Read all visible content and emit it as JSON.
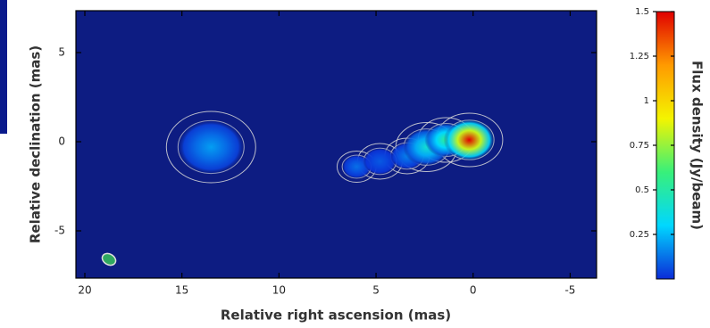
{
  "chart_data": {
    "type": "image",
    "x_label": "Relative right ascension (mas)",
    "y_label": "Relative declination (mas)",
    "colorbar_label": "Flux density (Jy/beam)",
    "xlim": [
      20.46,
      -6.36
    ],
    "ylim": [
      -7.65,
      7.35
    ],
    "xticks": [
      20,
      15,
      10,
      5,
      0,
      -5
    ],
    "yticks": [
      5,
      0,
      -5
    ],
    "clim": [
      0,
      1.5
    ],
    "cticks": [
      1.5,
      1.25,
      1,
      0.75,
      0.5,
      0.25
    ],
    "background": "#0d1c82",
    "contour_color": "#d8d8d8",
    "colorscale": [
      "#0b2bd8",
      "#00d7ff",
      "#38f07a",
      "#f4f400",
      "#ff9a00",
      "#e00000"
    ],
    "components": [
      {
        "x": 13.5,
        "y": -0.3,
        "flux": 0.2,
        "size": 1.6
      },
      {
        "x": 6.0,
        "y": -1.4,
        "flux": 0.12,
        "size": 0.7
      },
      {
        "x": 4.8,
        "y": -1.1,
        "flux": 0.08,
        "size": 0.8
      },
      {
        "x": 3.4,
        "y": -0.8,
        "flux": 0.15,
        "size": 0.8
      },
      {
        "x": 2.4,
        "y": -0.3,
        "flux": 0.4,
        "size": 1.1
      },
      {
        "x": 1.4,
        "y": 0.1,
        "flux": 0.55,
        "size": 1.0
      },
      {
        "x": 0.2,
        "y": 0.1,
        "flux": 1.5,
        "size": 1.2
      }
    ]
  }
}
